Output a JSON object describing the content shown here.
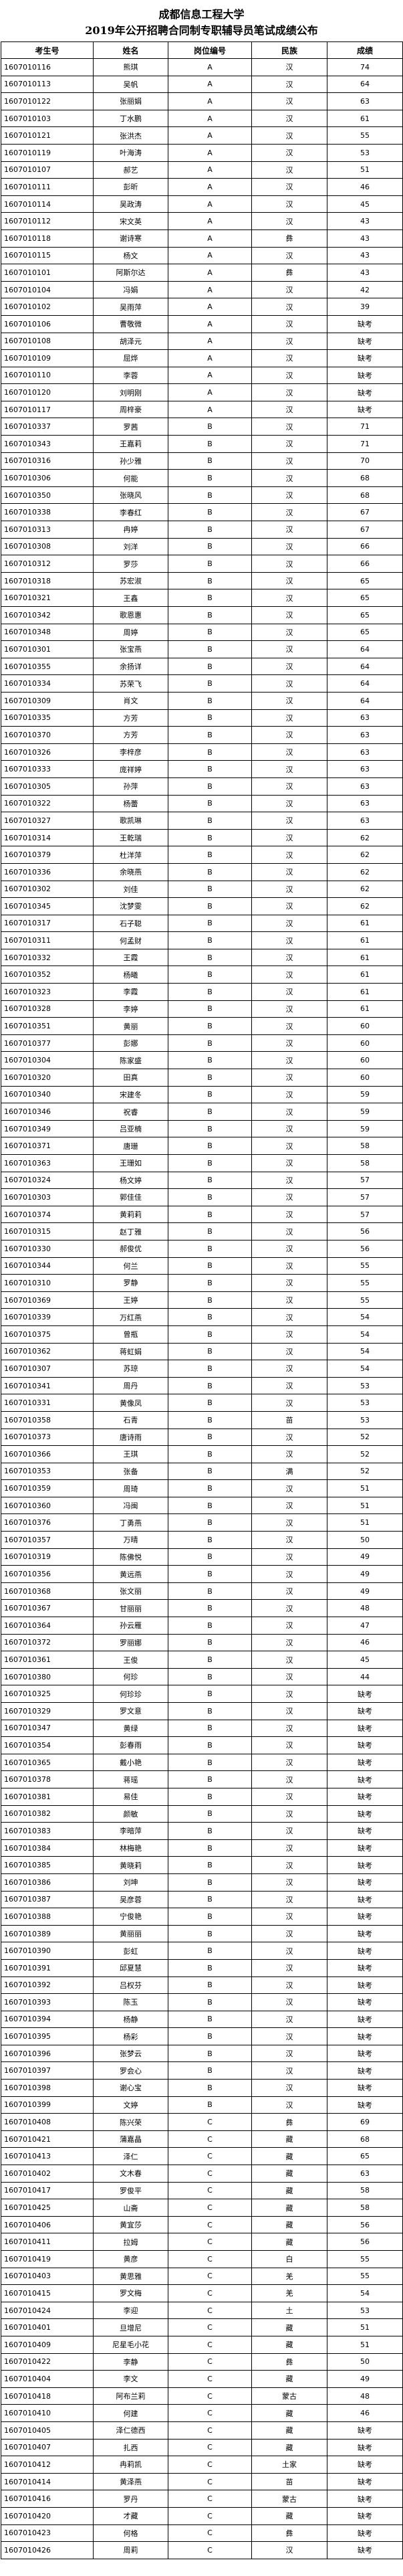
{
  "header": {
    "title": "成都信息工程大学",
    "subtitle": "2019年公开招聘合同制专职辅导员笔试成绩公布"
  },
  "table": {
    "columns": [
      "考生号",
      "姓名",
      "岗位编号",
      "民族",
      "成绩"
    ],
    "rows": [
      [
        "1607010116",
        "熊琪",
        "A",
        "汉",
        74
      ],
      [
        "1607010113",
        "吴帆",
        "A",
        "汉",
        64
      ],
      [
        "1607010122",
        "张丽娟",
        "A",
        "汉",
        63
      ],
      [
        "1607010103",
        "丁水鹏",
        "A",
        "汉",
        61
      ],
      [
        "1607010121",
        "张洪杰",
        "A",
        "汉",
        55
      ],
      [
        "1607010119",
        "叶海涛",
        "A",
        "汉",
        53
      ],
      [
        "1607010107",
        "郝艺",
        "A",
        "汉",
        51
      ],
      [
        "1607010111",
        "彭昕",
        "A",
        "汉",
        46
      ],
      [
        "1607010114",
        "吴政涛",
        "A",
        "汉",
        45
      ],
      [
        "1607010112",
        "宋文英",
        "A",
        "汉",
        43
      ],
      [
        "1607010118",
        "谢诗寒",
        "A",
        "彝",
        43
      ],
      [
        "1607010115",
        "杨文",
        "A",
        "汉",
        43
      ],
      [
        "1607010101",
        "阿斯尔达",
        "A",
        "彝",
        43
      ],
      [
        "1607010104",
        "冯娟",
        "A",
        "汉",
        42
      ],
      [
        "1607010102",
        "吴雨萍",
        "A",
        "汉",
        39
      ],
      [
        "1607010106",
        "曹敬微",
        "A",
        "汉",
        "缺考"
      ],
      [
        "1607010108",
        "胡泽元",
        "A",
        "汉",
        "缺考"
      ],
      [
        "1607010109",
        "屈烨",
        "A",
        "汉",
        "缺考"
      ],
      [
        "1607010110",
        "李蓉",
        "A",
        "汉",
        "缺考"
      ],
      [
        "1607010120",
        "刘明刚",
        "A",
        "汉",
        "缺考"
      ],
      [
        "1607010117",
        "周梓豪",
        "A",
        "汉",
        "缺考"
      ],
      [
        "1607010337",
        "罗茜",
        "B",
        "汉",
        71
      ],
      [
        "1607010343",
        "王嘉莉",
        "B",
        "汉",
        71
      ],
      [
        "1607010316",
        "孙少雅",
        "B",
        "汉",
        70
      ],
      [
        "1607010306",
        "何能",
        "B",
        "汉",
        68
      ],
      [
        "1607010350",
        "张晓风",
        "B",
        "汉",
        68
      ],
      [
        "1607010338",
        "李春红",
        "B",
        "汉",
        67
      ],
      [
        "1607010313",
        "冉婷",
        "B",
        "汉",
        67
      ],
      [
        "1607010308",
        "刘洋",
        "B",
        "汉",
        66
      ],
      [
        "1607010312",
        "罗莎",
        "B",
        "汉",
        66
      ],
      [
        "1607010318",
        "苏宏淑",
        "B",
        "汉",
        65
      ],
      [
        "1607010321",
        "王鑫",
        "B",
        "汉",
        65
      ],
      [
        "1607010342",
        "歌恩惠",
        "B",
        "汉",
        65
      ],
      [
        "1607010348",
        "周婷",
        "B",
        "汉",
        65
      ],
      [
        "1607010301",
        "张宝燕",
        "B",
        "汉",
        64
      ],
      [
        "1607010355",
        "余扬详",
        "B",
        "汉",
        64
      ],
      [
        "1607010334",
        "苏荣飞",
        "B",
        "汉",
        64
      ],
      [
        "1607010309",
        "肖文",
        "B",
        "汉",
        64
      ],
      [
        "1607010335",
        "方芳",
        "B",
        "汉",
        63
      ],
      [
        "1607010370",
        "方芳",
        "B",
        "汉",
        63
      ],
      [
        "1607010326",
        "李梓彦",
        "B",
        "汉",
        63
      ],
      [
        "1607010333",
        "庞祥婷",
        "B",
        "汉",
        63
      ],
      [
        "1607010305",
        "孙萍",
        "B",
        "汉",
        63
      ],
      [
        "1607010322",
        "杨蕾",
        "B",
        "汉",
        63
      ],
      [
        "1607010327",
        "歌凯琳",
        "B",
        "汉",
        63
      ],
      [
        "1607010314",
        "王乾瑞",
        "B",
        "汉",
        62
      ],
      [
        "1607010379",
        "杜洋萍",
        "B",
        "汉",
        62
      ],
      [
        "1607010336",
        "余晓燕",
        "B",
        "汉",
        62
      ],
      [
        "1607010302",
        "刘佳",
        "B",
        "汉",
        62
      ],
      [
        "1607010345",
        "沈梦雯",
        "B",
        "汉",
        62
      ],
      [
        "1607010317",
        "石子聪",
        "B",
        "汉",
        61
      ],
      [
        "1607010311",
        "何孟财",
        "B",
        "汉",
        61
      ],
      [
        "1607010332",
        "王霞",
        "B",
        "汉",
        61
      ],
      [
        "1607010352",
        "杨曦",
        "B",
        "汉",
        61
      ],
      [
        "1607010323",
        "李霞",
        "B",
        "汉",
        61
      ],
      [
        "1607010328",
        "李婷",
        "B",
        "汉",
        61
      ],
      [
        "1607010351",
        "黄丽",
        "B",
        "汉",
        60
      ],
      [
        "1607010377",
        "彭娜",
        "B",
        "汉",
        60
      ],
      [
        "1607010304",
        "陈家盛",
        "B",
        "汉",
        60
      ],
      [
        "1607010320",
        "田真",
        "B",
        "汉",
        60
      ],
      [
        "1607010340",
        "宋建冬",
        "B",
        "汉",
        59
      ],
      [
        "1607010346",
        "祝睿",
        "B",
        "汉",
        59
      ],
      [
        "1607010349",
        "吕亚楠",
        "B",
        "汉",
        59
      ],
      [
        "1607010371",
        "唐珊",
        "B",
        "汉",
        58
      ],
      [
        "1607010363",
        "王珊如",
        "B",
        "汉",
        58
      ],
      [
        "1607010324",
        "杨文婷",
        "B",
        "汉",
        57
      ],
      [
        "1607010303",
        "郭佳佳",
        "B",
        "汉",
        57
      ],
      [
        "1607010374",
        "黄莉莉",
        "B",
        "汉",
        57
      ],
      [
        "1607010315",
        "赵丁雅",
        "B",
        "汉",
        56
      ],
      [
        "1607010330",
        "郝俊优",
        "B",
        "汉",
        56
      ],
      [
        "1607010344",
        "何兰",
        "B",
        "汉",
        55
      ],
      [
        "1607010310",
        "罗静",
        "B",
        "汉",
        55
      ],
      [
        "1607010369",
        "王婷",
        "B",
        "汉",
        55
      ],
      [
        "1607010339",
        "万红燕",
        "B",
        "汉",
        54
      ],
      [
        "1607010375",
        "曾瓶",
        "B",
        "汉",
        54
      ],
      [
        "1607010362",
        "蒋虹娟",
        "B",
        "汉",
        54
      ],
      [
        "1607010307",
        "苏琼",
        "B",
        "汉",
        54
      ],
      [
        "1607010341",
        "周丹",
        "B",
        "汉",
        53
      ],
      [
        "1607010331",
        "黄像凤",
        "B",
        "汉",
        53
      ],
      [
        "1607010358",
        "石青",
        "B",
        "苗",
        53
      ],
      [
        "1607010373",
        "唐诗雨",
        "B",
        "汉",
        52
      ],
      [
        "1607010366",
        "王琪",
        "B",
        "汉",
        52
      ],
      [
        "1607010353",
        "张备",
        "B",
        "满",
        52
      ],
      [
        "1607010359",
        "周琦",
        "B",
        "汉",
        51
      ],
      [
        "1607010360",
        "冯闽",
        "B",
        "汉",
        51
      ],
      [
        "1607010376",
        "丁勇燕",
        "B",
        "汉",
        51
      ],
      [
        "1607010357",
        "万晴",
        "B",
        "汉",
        50
      ],
      [
        "1607010319",
        "陈佛悦",
        "B",
        "汉",
        49
      ],
      [
        "1607010356",
        "黄远燕",
        "B",
        "汉",
        49
      ],
      [
        "1607010368",
        "张文丽",
        "B",
        "汉",
        49
      ],
      [
        "1607010367",
        "甘丽丽",
        "B",
        "汉",
        48
      ],
      [
        "1607010364",
        "孙云雁",
        "B",
        "汉",
        47
      ],
      [
        "1607010372",
        "罗丽娜",
        "B",
        "汉",
        46
      ],
      [
        "1607010361",
        "王俊",
        "B",
        "汉",
        45
      ],
      [
        "1607010380",
        "何珍",
        "B",
        "汉",
        44
      ],
      [
        "1607010325",
        "何珍珍",
        "B",
        "汉",
        "缺考"
      ],
      [
        "1607010329",
        "罗文意",
        "B",
        "汉",
        "缺考"
      ],
      [
        "1607010347",
        "黄绿",
        "B",
        "汉",
        "缺考"
      ],
      [
        "1607010354",
        "彭春雨",
        "B",
        "汉",
        "缺考"
      ],
      [
        "1607010365",
        "戴小艳",
        "B",
        "汉",
        "缺考"
      ],
      [
        "1607010378",
        "蒋瑶",
        "B",
        "汉",
        "缺考"
      ],
      [
        "1607010381",
        "易佳",
        "B",
        "汉",
        "缺考"
      ],
      [
        "1607010382",
        "颜敏",
        "B",
        "汉",
        "缺考"
      ],
      [
        "1607010383",
        "李暗萍",
        "B",
        "汉",
        "缺考"
      ],
      [
        "1607010384",
        "林梅艳",
        "B",
        "汉",
        "缺考"
      ],
      [
        "1607010385",
        "黄晓莉",
        "B",
        "汉",
        "缺考"
      ],
      [
        "1607010386",
        "刘坤",
        "B",
        "汉",
        "缺考"
      ],
      [
        "1607010387",
        "吴彦蓉",
        "B",
        "汉",
        "缺考"
      ],
      [
        "1607010388",
        "宁俊艳",
        "B",
        "汉",
        "缺考"
      ],
      [
        "1607010389",
        "黄丽丽",
        "B",
        "汉",
        "缺考"
      ],
      [
        "1607010390",
        "彭虹",
        "B",
        "汉",
        "缺考"
      ],
      [
        "1607010391",
        "邱夏慧",
        "B",
        "汉",
        "缺考"
      ],
      [
        "1607010392",
        "吕权芬",
        "B",
        "汉",
        "缺考"
      ],
      [
        "1607010393",
        "陈玉",
        "B",
        "汉",
        "缺考"
      ],
      [
        "1607010394",
        "杨静",
        "B",
        "汉",
        "缺考"
      ],
      [
        "1607010395",
        "杨彩",
        "B",
        "汉",
        "缺考"
      ],
      [
        "1607010396",
        "张梦云",
        "B",
        "汉",
        "缺考"
      ],
      [
        "1607010397",
        "罗会心",
        "B",
        "汉",
        "缺考"
      ],
      [
        "1607010398",
        "谢心宝",
        "B",
        "汉",
        "缺考"
      ],
      [
        "1607010399",
        "文婷",
        "B",
        "汉",
        "缺考"
      ],
      [
        "1607010408",
        "陈兴荣",
        "C",
        "彝",
        69
      ],
      [
        "1607010421",
        "蒲嘉晶",
        "C",
        "藏",
        68
      ],
      [
        "1607010413",
        "泽仁",
        "C",
        "藏",
        65
      ],
      [
        "1607010402",
        "文木春",
        "C",
        "藏",
        63
      ],
      [
        "1607010417",
        "罗俊平",
        "C",
        "藏",
        58
      ],
      [
        "1607010425",
        "山斋",
        "C",
        "藏",
        58
      ],
      [
        "1607010406",
        "黄宜莎",
        "C",
        "藏",
        56
      ],
      [
        "1607010411",
        "拉姆",
        "C",
        "藏",
        56
      ],
      [
        "1607010419",
        "黄彦",
        "C",
        "白",
        55
      ],
      [
        "1607010403",
        "黄思雅",
        "C",
        "羌",
        55
      ],
      [
        "1607010415",
        "罗文梅",
        "C",
        "羌",
        54
      ],
      [
        "1607010424",
        "李迎",
        "C",
        "土",
        53
      ],
      [
        "1607010401",
        "旦增尼",
        "C",
        "藏",
        51
      ],
      [
        "1607010409",
        "尼星毛小花",
        "C",
        "藏",
        51
      ],
      [
        "1607010422",
        "李静",
        "C",
        "彝",
        50
      ],
      [
        "1607010404",
        "李文",
        "C",
        "藏",
        49
      ],
      [
        "1607010418",
        "阿布兰莉",
        "C",
        "蒙古",
        48
      ],
      [
        "1607010410",
        "何建",
        "C",
        "藏",
        46
      ],
      [
        "1607010405",
        "泽仁德西",
        "C",
        "藏",
        "缺考"
      ],
      [
        "1607010407",
        "扎西",
        "C",
        "藏",
        "缺考"
      ],
      [
        "1607010412",
        "冉莉凯",
        "C",
        "土家",
        "缺考"
      ],
      [
        "1607010414",
        "黄泽燕",
        "C",
        "苗",
        "缺考"
      ],
      [
        "1607010416",
        "罗丹",
        "C",
        "蒙古",
        "缺考"
      ],
      [
        "1607010420",
        "才藏",
        "C",
        "藏",
        "缺考"
      ],
      [
        "1607010423",
        "何格",
        "C",
        "彝",
        "缺考"
      ],
      [
        "1607010426",
        "周莉",
        "C",
        "汉",
        "缺考"
      ]
    ]
  }
}
